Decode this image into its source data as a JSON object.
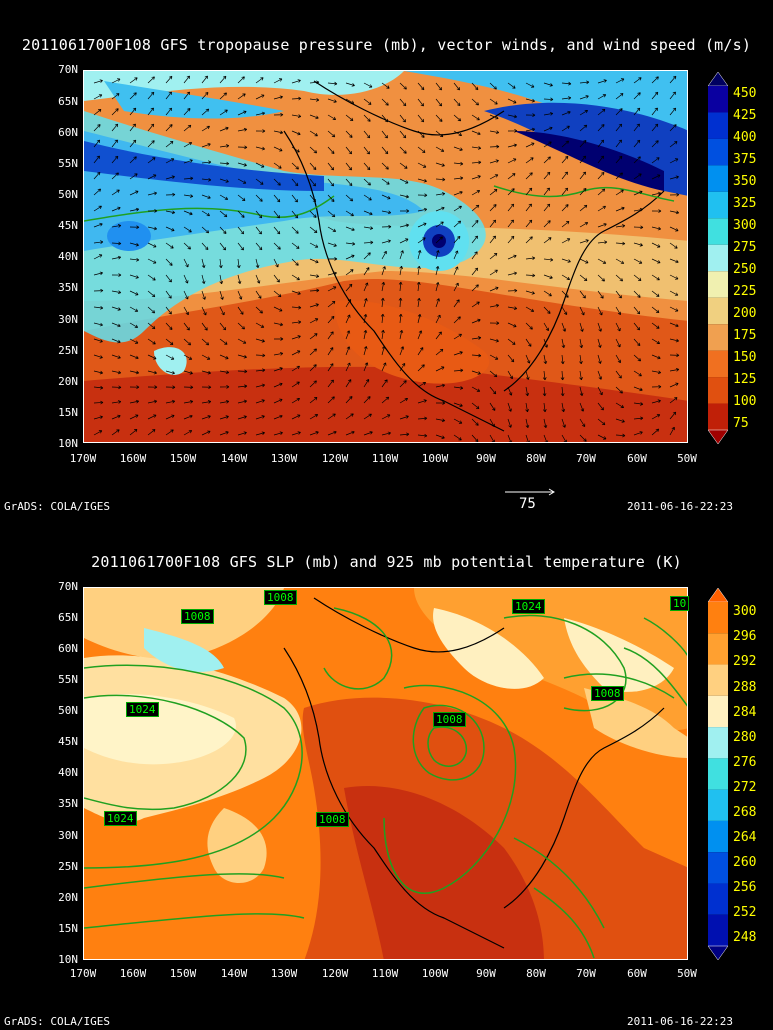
{
  "panel1": {
    "title": "2011061700F108 GFS tropopause pressure (mb), vector winds, and wind speed (m/s)",
    "colorbar_labels": [
      "450",
      "425",
      "400",
      "375",
      "350",
      "325",
      "300",
      "275",
      "250",
      "225",
      "200",
      "175",
      "150",
      "125",
      "100",
      "75"
    ],
    "vector_ref_label": "75",
    "footer_left": "GrADS: COLA/IGES",
    "footer_right": "2011-06-16-22:23"
  },
  "panel2": {
    "title": "2011061700F108 GFS SLP (mb) and 925 mb potential temperature (K)",
    "colorbar_labels": [
      "300",
      "296",
      "292",
      "288",
      "284",
      "280",
      "276",
      "272",
      "268",
      "264",
      "260",
      "256",
      "252",
      "248"
    ],
    "contour_labels": [
      "1008",
      "1008",
      "1024",
      "10",
      "1008",
      "1024",
      "1008",
      "1024",
      "1008"
    ],
    "footer_left": "GrADS: COLA/IGES",
    "footer_right": "2011-06-16-22:23"
  },
  "axes": {
    "lat_labels": [
      "70N",
      "65N",
      "60N",
      "55N",
      "50N",
      "45N",
      "40N",
      "35N",
      "30N",
      "25N",
      "20N",
      "15N",
      "10N"
    ],
    "lon_labels": [
      "170W",
      "160W",
      "150W",
      "140W",
      "130W",
      "120W",
      "110W",
      "100W",
      "90W",
      "80W",
      "70W",
      "60W",
      "50W"
    ]
  },
  "colors": {
    "p1_scale": [
      "#000060",
      "#0a00a0",
      "#0030d0",
      "#0050e0",
      "#0090f0",
      "#20c0f0",
      "#40e0e0",
      "#a0f0f0",
      "#f0f0b0",
      "#f0d080",
      "#f0a050",
      "#f07020",
      "#e05010",
      "#c02008",
      "#a00000"
    ],
    "p2_scale": [
      "#ff6000",
      "#ff8010",
      "#ffa030",
      "#ffd080",
      "#fff0c0",
      "#a0f0f0",
      "#40e0e0",
      "#20c0f0",
      "#0090f0",
      "#0050e0",
      "#0030d0",
      "#0010b0",
      "#000080"
    ]
  }
}
